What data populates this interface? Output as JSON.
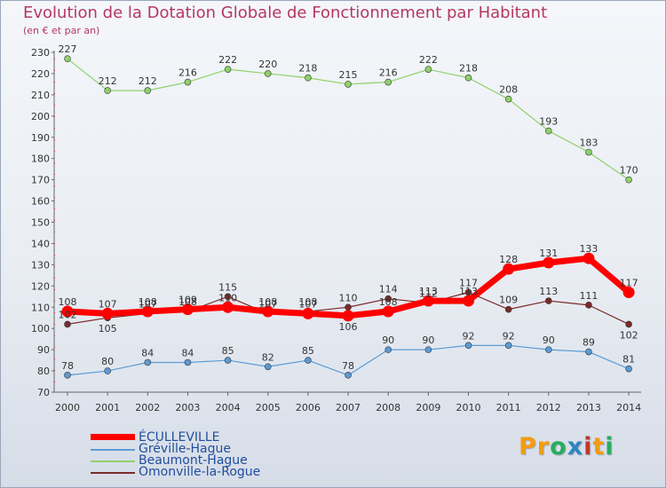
{
  "header": {
    "title": "Evolution de la Dotation Globale de Fonctionnement par Habitant",
    "subtitle": "(en € et par an)"
  },
  "brand": {
    "letters": [
      "P",
      "r",
      "o",
      "x",
      "i",
      "t",
      "i"
    ]
  },
  "colors": {
    "title": "#b5385f",
    "brand": [
      "#f39c12",
      "#f39c12",
      "#27ae60",
      "#2e86c1",
      "#c0392b",
      "#f39c12",
      "#27ae60"
    ]
  },
  "chart_data": {
    "type": "line",
    "title": "Evolution de la Dotation Globale de Fonctionnement par Habitant",
    "ylabel": "(en € et par an)",
    "xlabel": "",
    "ylim": [
      70,
      230
    ],
    "yticks": [
      "70",
      "80",
      "90",
      "100",
      "110",
      "120",
      "130",
      "140",
      "150",
      "160",
      "170",
      "180",
      "190",
      "200",
      "210",
      "220",
      "230"
    ],
    "categories": [
      "2000",
      "2001",
      "2002",
      "2003",
      "2004",
      "2005",
      "2006",
      "2007",
      "2008",
      "2009",
      "2010",
      "2011",
      "2012",
      "2013",
      "2014"
    ],
    "grid": false,
    "series": [
      {
        "name": "ÉCULLEVILLE",
        "color": "#ff0000",
        "values": [
          108,
          107,
          108,
          109,
          110,
          108,
          107,
          106,
          108,
          113,
          113,
          128,
          131,
          133,
          117
        ],
        "labels": [
          "108",
          "107",
          "108",
          "109",
          "110",
          "108",
          "107",
          "106",
          "108",
          "113",
          "113",
          "128",
          "131",
          "133",
          "117"
        ],
        "label_offsets": [
          -1,
          -1,
          -1,
          -1,
          -1,
          -1,
          -1,
          1,
          -1,
          -1,
          -1,
          -1,
          -1,
          -1,
          -1
        ]
      },
      {
        "name": "Gréville-Hague",
        "color": "#5b9bd5",
        "values": [
          78,
          80,
          84,
          84,
          85,
          82,
          85,
          78,
          90,
          90,
          92,
          92,
          90,
          89,
          81
        ],
        "labels": [
          "78",
          "80",
          "84",
          "84",
          "85",
          "82",
          "85",
          "78",
          "90",
          "90",
          "92",
          "92",
          "90",
          "89",
          "81"
        ],
        "label_offsets": [
          -1,
          -1,
          -1,
          -1,
          -1,
          -1,
          -1,
          -1,
          -1,
          -1,
          -1,
          -1,
          -1,
          -1,
          -1
        ]
      },
      {
        "name": "Beaumont-Hague",
        "color": "#8fd16a",
        "values": [
          227,
          212,
          212,
          216,
          222,
          220,
          218,
          215,
          216,
          222,
          218,
          208,
          193,
          183,
          170
        ],
        "labels": [
          "227",
          "212",
          "212",
          "216",
          "222",
          "220",
          "218",
          "215",
          "216",
          "222",
          "218",
          "208",
          "193",
          "183",
          "170"
        ],
        "label_offsets": [
          -1,
          -1,
          -1,
          -1,
          -1,
          -1,
          -1,
          -1,
          -1,
          -1,
          -1,
          -1,
          -1,
          -1,
          -1
        ]
      },
      {
        "name": "Omonville-la-Rogue",
        "color": "#7a2a2a",
        "values": [
          102,
          105,
          107,
          108,
          115,
          107,
          108,
          110,
          114,
          112,
          117,
          109,
          113,
          111,
          102
        ],
        "labels": [
          "102",
          "105",
          "107",
          "108",
          "115",
          "107",
          "108",
          "110",
          "114",
          "112",
          "117",
          "109",
          "113",
          "111",
          "102"
        ],
        "label_offsets": [
          -1,
          1,
          -1,
          -1,
          -1,
          -1,
          -1,
          -1,
          -1,
          -1,
          -1,
          -1,
          -1,
          -1,
          1
        ]
      }
    ]
  }
}
